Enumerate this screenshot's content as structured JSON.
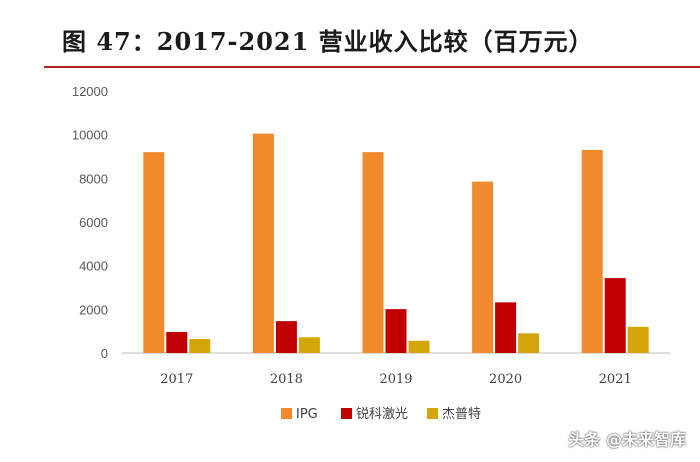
{
  "figure": {
    "title": "图 47：2017-2021 营业收入比较（百万元）",
    "watermark": "头条 @未来智库"
  },
  "chart_data": {
    "type": "bar",
    "categories": [
      "2017",
      "2018",
      "2019",
      "2020",
      "2021"
    ],
    "series": [
      {
        "name": "IPG",
        "color": "#f08a2c",
        "values": [
          9200,
          10050,
          9200,
          7850,
          9300
        ]
      },
      {
        "name": "锐科激光",
        "color": "#c00000",
        "values": [
          960,
          1460,
          2010,
          2320,
          3430
        ]
      },
      {
        "name": "杰普特",
        "color": "#d4a60a",
        "values": [
          640,
          720,
          560,
          900,
          1200
        ]
      }
    ],
    "ylim": [
      0,
      12000
    ],
    "yticks": [
      "0",
      "2000",
      "4000",
      "6000",
      "8000",
      "10000",
      "12000"
    ],
    "grid": false,
    "legend_position": "bottom"
  }
}
